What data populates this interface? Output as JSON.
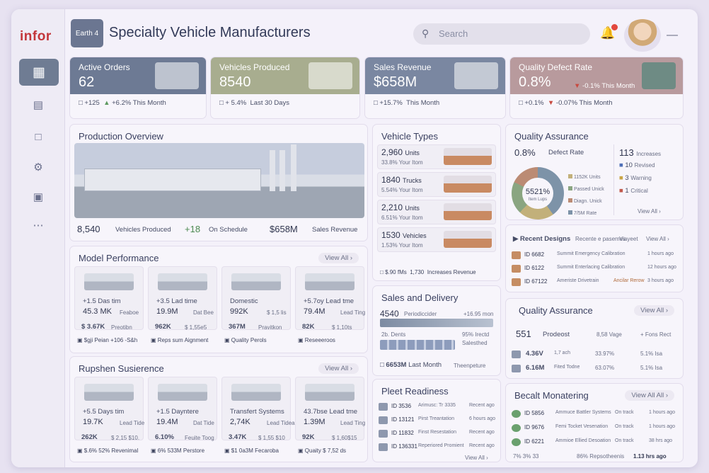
{
  "sidebar": {
    "logo": "infor"
  },
  "header": {
    "brand_badge": "Earth 4",
    "title": "Specialty Vehicle Manufacturers",
    "search_placeholder": "Search"
  },
  "kpis": [
    {
      "label": "Active Orders",
      "value": "62",
      "s1": "+125",
      "s2": "+6.2% This Month"
    },
    {
      "label": "Vehicles Produced",
      "value": "8540",
      "s1": "+ 5.4%",
      "s2": "Last 30 Days"
    },
    {
      "label": "Sales Revenue",
      "value": "$658M",
      "s1": "+15.7%",
      "s2": "This Month"
    },
    {
      "label": "Quality Defect Rate",
      "value": "0.8%",
      "s1": "-0.1% This Month",
      "s2": "+0.1%",
      "s3": "-0.07% This Month"
    }
  ],
  "production": {
    "title": "Production Overview",
    "produced_value": "8,540",
    "produced_label": "Vehicles Produced",
    "sched_value": "+18",
    "sched_label": "On Schedule",
    "rev_value": "$658M",
    "rev_label": "Sales Revenue"
  },
  "model": {
    "title": "Model Performance",
    "view_all": "View All",
    "items": [
      {
        "l1": "+1.5 Das tim",
        "v": "45.3 MK",
        "s": "Feaboe",
        "b": "$ 3.67K",
        "bl": "Preotibn"
      },
      {
        "l1": "+3.5 Lad time",
        "v": "19.9M",
        "s": "Dat Bee",
        "b": "962K",
        "bl": "$ 1,55e5"
      },
      {
        "l1": "Domestic",
        "v": "992K",
        "s": "$ 1,5 lis",
        "b": "367M",
        "bl": "Pravitkon"
      },
      {
        "l1": "+5.7oy Lead tme",
        "v": "79.4M",
        "s": "Lead Ting",
        "b": "82K",
        "bl": "$ 1,10ts"
      }
    ],
    "footer": [
      {
        "a": "$gji Peian",
        "b": "+106 -S&h"
      },
      {
        "a": "Reps sum Aignment",
        "b": ""
      },
      {
        "a": "Quality Perols",
        "b": ""
      },
      {
        "a": "Reseeeroos",
        "b": ""
      }
    ]
  },
  "supply": {
    "title": "Rupshen Susierence",
    "view_all": "View All",
    "items": [
      {
        "l1": "+5.5 Days tim",
        "v": "19.7K",
        "s": "Lead Tide",
        "b": "262K",
        "bl": "$ 2,15 $10."
      },
      {
        "l1": "+1.5 Dayntere",
        "v": "19.4M",
        "s": "Dat Tide",
        "b": "6.10%",
        "bl": "Feuite Toog"
      },
      {
        "l1": "Transfert Systems",
        "v": "2,74K",
        "s": "Lead Tidea",
        "b": "3.47K",
        "bl": "$ 1,55 $10"
      },
      {
        "l1": "43.7bse Lead tme",
        "v": "1.39M",
        "s": "Lead Ting",
        "b": "92K",
        "bl": "$ 1,60$15"
      }
    ],
    "footer": [
      {
        "a": "$.6% 52%",
        "b": "Revenimal"
      },
      {
        "a": "6% 533M",
        "b": "Perstore"
      },
      {
        "a": "$1 0a3M",
        "b": "Fecaroba"
      },
      {
        "a": "Quaity",
        "b": "$ 7,52 ds"
      }
    ]
  },
  "vtypes": {
    "title": "Vehicle Types",
    "items": [
      {
        "n": "2,960",
        "u": "Units",
        "s": "33.8% Your Itom"
      },
      {
        "n": "1840",
        "u": "Trucks",
        "s": "5.54% Your Itom"
      },
      {
        "n": "2,210",
        "u": "Units",
        "s": "6.51% Your Itom"
      },
      {
        "n": "1530",
        "u": "Vehicles",
        "s": "1.53% Your Itom"
      }
    ],
    "footer_a": "$.90 fMs",
    "footer_b": "1,730",
    "footer_c": "Increases Revenue"
  },
  "sales": {
    "title": "Sales and Delivery",
    "v1": "4540",
    "l1": "Periodiccider",
    "r1": "+16.95 mon",
    "l2": "2b. Dents",
    "r2": "95% Irectd",
    "r3": "Salesthed",
    "bottom_v": "6653M",
    "bottom_l": "Last Month",
    "bottom_r": "Theenpeture"
  },
  "fleet": {
    "title": "Pleet Readiness",
    "view_all": "View All",
    "rows": [
      {
        "id": "ID 3536",
        "d": "Arimusc: Tr 3335",
        "t": "Recent ago"
      },
      {
        "id": "ID 13121",
        "d": "Pirst Treantation",
        "t": "6 hours ago"
      },
      {
        "id": "ID 11832",
        "d": "Finst Resestation",
        "t": "Recent ago"
      },
      {
        "id": "ID 136331",
        "d": "Reperiored Promient",
        "t": "Recent ago"
      }
    ]
  },
  "qa1": {
    "title": "Quality Assurance",
    "defect_value": "0.8%",
    "defect_label": "Defect Rate",
    "donut_value": "5521%",
    "donut_label": "Item Lups",
    "legend": [
      "1152K Units",
      "Passed Unick",
      "Diagn. Unick",
      "7/5M Rate"
    ],
    "right": [
      {
        "n": "113",
        "l": "Increases"
      },
      {
        "n": "10",
        "l": "Revised"
      },
      {
        "n": "3",
        "l": "Warning"
      },
      {
        "n": "1",
        "l": "Critical"
      }
    ],
    "view_all": "View All"
  },
  "recent": {
    "title": "Recent Designs",
    "sub": "Recente e pasemes",
    "meta": "Viayeet",
    "view_all": "View All",
    "rows": [
      {
        "id": "ID 6682",
        "d": "Summit Emergency Calibration",
        "t": "1 hours ago"
      },
      {
        "id": "ID 6122",
        "d": "Summit Enterlacing Calibration",
        "t": "12 hours ago"
      },
      {
        "id": "ID 67122",
        "d": "Ameriste Drivetrain",
        "s": "Ancilar Rerow",
        "t": "3 hours ago"
      }
    ]
  },
  "qa2": {
    "title": "Quality Assurance",
    "view_all": "View All",
    "head": {
      "a": "551",
      "b": "Prodeost",
      "c": "8,58 Vage",
      "d": "+ Fons Rect"
    },
    "rows": [
      {
        "v": "4.36V",
        "s": "1,7 ach",
        "p": "33.97%",
        "r": "5.1% Isa"
      },
      {
        "v": "6.16M",
        "s": "Fited Todne",
        "p": "63.07%",
        "r": "5.1% Isa"
      }
    ]
  },
  "monitor": {
    "title": "Becalt Monatering",
    "view_all": "View All All",
    "rows": [
      {
        "id": "ID 5856",
        "d": "Ammuce Battler Systems",
        "s": "On track",
        "t": "1 hours ago"
      },
      {
        "id": "ID 9676",
        "d": "Femi Tocket Vesenation",
        "s": "On track",
        "t": "1 hours ago"
      },
      {
        "id": "ID 6221",
        "d": "Ammioe Ellied Desoation",
        "s": "On track",
        "t": "38 hrs ago"
      }
    ],
    "footer_a": "7% 3% 33",
    "footer_b": "86% Repsotheenis",
    "footer_c": "1.13 hrs ago"
  }
}
